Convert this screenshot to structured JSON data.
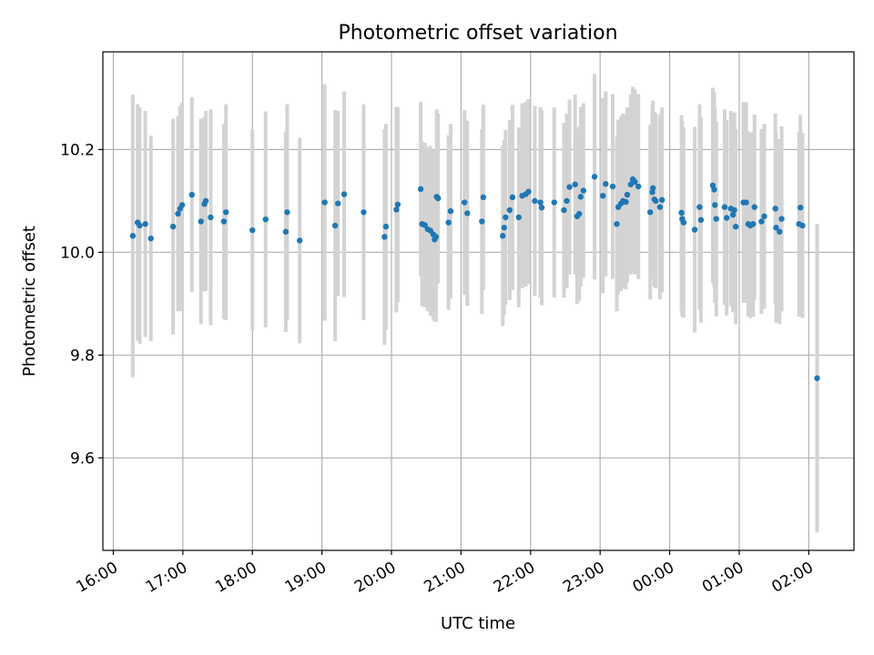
{
  "chart_data": {
    "type": "scatter",
    "title": "Photometric offset variation",
    "xlabel": "UTC time",
    "ylabel": "Photometric offset",
    "x_unit": "hours since 16:00 UTC",
    "xlim": [
      -0.15,
      10.65
    ],
    "ylim": [
      9.42,
      10.39
    ],
    "grid": true,
    "xticks": [
      {
        "value": 0,
        "label": "16:00"
      },
      {
        "value": 1,
        "label": "17:00"
      },
      {
        "value": 2,
        "label": "18:00"
      },
      {
        "value": 3,
        "label": "19:00"
      },
      {
        "value": 4,
        "label": "20:00"
      },
      {
        "value": 5,
        "label": "21:00"
      },
      {
        "value": 6,
        "label": "22:00"
      },
      {
        "value": 7,
        "label": "23:00"
      },
      {
        "value": 8,
        "label": "00:00"
      },
      {
        "value": 9,
        "label": "01:00"
      },
      {
        "value": 10,
        "label": "02:00"
      }
    ],
    "yticks": [
      {
        "value": 9.6,
        "label": "9.6"
      },
      {
        "value": 9.8,
        "label": "9.8"
      },
      {
        "value": 10.0,
        "label": "10.0"
      },
      {
        "value": 10.2,
        "label": "10.2"
      }
    ],
    "colors": {
      "point": "#1f77b4",
      "errorbar": "#d3d3d3"
    },
    "series": [
      {
        "name": "offset",
        "points": [
          [
            0.28,
            10.032,
            0.275
          ],
          [
            0.35,
            10.058,
            0.23
          ],
          [
            0.38,
            10.052,
            0.23
          ],
          [
            0.46,
            10.055,
            0.22
          ],
          [
            0.54,
            10.027,
            0.2
          ],
          [
            0.86,
            10.05,
            0.21
          ],
          [
            0.93,
            10.075,
            0.19
          ],
          [
            0.96,
            10.085,
            0.2
          ],
          [
            0.99,
            10.092,
            0.2
          ],
          [
            1.13,
            10.112,
            0.19
          ],
          [
            1.26,
            10.06,
            0.2
          ],
          [
            1.31,
            10.094,
            0.17
          ],
          [
            1.33,
            10.1,
            0.175
          ],
          [
            1.4,
            10.068,
            0.21
          ],
          [
            1.59,
            10.06,
            0.19
          ],
          [
            1.62,
            10.078,
            0.21
          ],
          [
            2.0,
            10.043,
            0.195
          ],
          [
            2.19,
            10.064,
            0.21
          ],
          [
            2.48,
            10.04,
            0.195
          ],
          [
            2.5,
            10.078,
            0.21
          ],
          [
            2.68,
            10.023,
            0.2
          ],
          [
            3.04,
            10.097,
            0.23
          ],
          [
            3.19,
            10.052,
            0.225
          ],
          [
            3.23,
            10.095,
            0.18
          ],
          [
            3.32,
            10.113,
            0.2
          ],
          [
            3.6,
            10.078,
            0.21
          ],
          [
            3.9,
            10.03,
            0.21
          ],
          [
            3.92,
            10.05,
            0.2
          ],
          [
            4.07,
            10.083,
            0.2
          ],
          [
            4.09,
            10.093,
            0.19
          ],
          [
            4.42,
            10.123,
            0.17
          ],
          [
            4.44,
            10.055,
            0.16
          ],
          [
            4.48,
            10.053,
            0.16
          ],
          [
            4.52,
            10.045,
            0.16
          ],
          [
            4.56,
            10.042,
            0.165
          ],
          [
            4.6,
            10.035,
            0.165
          ],
          [
            4.62,
            10.025,
            0.16
          ],
          [
            4.64,
            10.03,
            0.165
          ],
          [
            4.65,
            10.108,
            0.17
          ],
          [
            4.67,
            10.105,
            0.165
          ],
          [
            4.82,
            10.058,
            0.17
          ],
          [
            4.85,
            10.08,
            0.17
          ],
          [
            5.05,
            10.097,
            0.18
          ],
          [
            5.09,
            10.076,
            0.18
          ],
          [
            5.3,
            10.06,
            0.18
          ],
          [
            5.32,
            10.107,
            0.18
          ],
          [
            5.6,
            10.032,
            0.175
          ],
          [
            5.62,
            10.048,
            0.17
          ],
          [
            5.64,
            10.068,
            0.17
          ],
          [
            5.7,
            10.082,
            0.175
          ],
          [
            5.74,
            10.107,
            0.18
          ],
          [
            5.83,
            10.068,
            0.175
          ],
          [
            5.88,
            10.11,
            0.18
          ],
          [
            5.93,
            10.113,
            0.18
          ],
          [
            5.97,
            10.118,
            0.18
          ],
          [
            6.06,
            10.1,
            0.185
          ],
          [
            6.14,
            10.097,
            0.185
          ],
          [
            6.16,
            10.087,
            0.19
          ],
          [
            6.34,
            10.097,
            0.185
          ],
          [
            6.48,
            10.082,
            0.17
          ],
          [
            6.52,
            10.1,
            0.17
          ],
          [
            6.56,
            10.127,
            0.17
          ],
          [
            6.64,
            10.132,
            0.175
          ],
          [
            6.67,
            10.07,
            0.17
          ],
          [
            6.7,
            10.075,
            0.17
          ],
          [
            6.72,
            10.108,
            0.175
          ],
          [
            6.76,
            10.12,
            0.17
          ],
          [
            6.92,
            10.147,
            0.2
          ],
          [
            7.04,
            10.11,
            0.19
          ],
          [
            7.08,
            10.133,
            0.18
          ],
          [
            7.18,
            10.128,
            0.18
          ],
          [
            7.24,
            10.055,
            0.17
          ],
          [
            7.26,
            10.088,
            0.17
          ],
          [
            7.3,
            10.095,
            0.17
          ],
          [
            7.33,
            10.1,
            0.17
          ],
          [
            7.37,
            10.098,
            0.17
          ],
          [
            7.39,
            10.112,
            0.17
          ],
          [
            7.44,
            10.132,
            0.175
          ],
          [
            7.47,
            10.142,
            0.18
          ],
          [
            7.5,
            10.137,
            0.18
          ],
          [
            7.55,
            10.128,
            0.18
          ],
          [
            7.72,
            10.078,
            0.17
          ],
          [
            7.75,
            10.117,
            0.17
          ],
          [
            7.76,
            10.125,
            0.17
          ],
          [
            7.78,
            10.103,
            0.17
          ],
          [
            7.8,
            10.1,
            0.17
          ],
          [
            7.86,
            10.088,
            0.18
          ],
          [
            7.89,
            10.102,
            0.18
          ],
          [
            8.17,
            10.077,
            0.19
          ],
          [
            8.18,
            10.065,
            0.19
          ],
          [
            8.2,
            10.058,
            0.185
          ],
          [
            8.36,
            10.044,
            0.2
          ],
          [
            8.43,
            10.088,
            0.2
          ],
          [
            8.45,
            10.063,
            0.2
          ],
          [
            8.62,
            10.13,
            0.19
          ],
          [
            8.64,
            10.122,
            0.19
          ],
          [
            8.65,
            10.092,
            0.19
          ],
          [
            8.67,
            10.065,
            0.19
          ],
          [
            8.79,
            10.088,
            0.19
          ],
          [
            8.82,
            10.067,
            0.19
          ],
          [
            8.88,
            10.085,
            0.19
          ],
          [
            8.91,
            10.073,
            0.19
          ],
          [
            8.93,
            10.082,
            0.19
          ],
          [
            8.95,
            10.05,
            0.19
          ],
          [
            9.06,
            10.097,
            0.195
          ],
          [
            9.1,
            10.097,
            0.195
          ],
          [
            9.13,
            10.055,
            0.18
          ],
          [
            9.16,
            10.052,
            0.18
          ],
          [
            9.2,
            10.055,
            0.18
          ],
          [
            9.22,
            10.088,
            0.18
          ],
          [
            9.32,
            10.06,
            0.18
          ],
          [
            9.36,
            10.07,
            0.18
          ],
          [
            9.52,
            10.085,
            0.185
          ],
          [
            9.53,
            10.048,
            0.185
          ],
          [
            9.58,
            10.04,
            0.18
          ],
          [
            9.61,
            10.065,
            0.18
          ],
          [
            9.86,
            10.055,
            0.18
          ],
          [
            9.88,
            10.087,
            0.18
          ],
          [
            9.91,
            10.052,
            0.18
          ],
          [
            10.12,
            9.755,
            0.3
          ]
        ]
      }
    ]
  }
}
